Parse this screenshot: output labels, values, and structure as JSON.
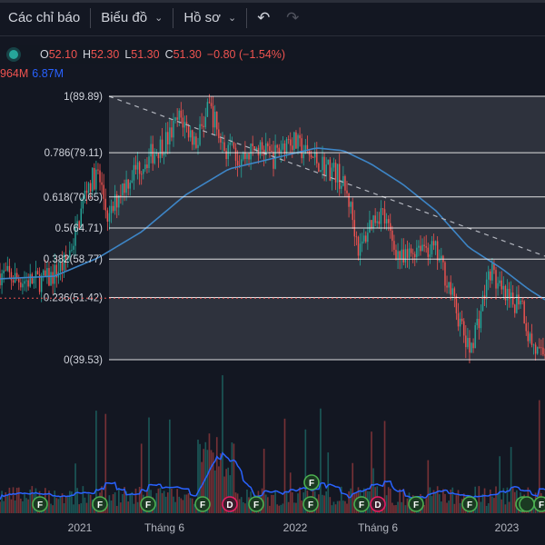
{
  "toolbar": {
    "indicators_label": "Các chỉ báo",
    "chart_label": "Biểu đồ",
    "profile_label": "Hồ sơ"
  },
  "legend": {
    "open_key": "O",
    "open": "52.10",
    "high_key": "H",
    "high": "52.30",
    "low_key": "L",
    "low": "51.30",
    "close_key": "C",
    "close": "51.30",
    "change": "−0.80 (−1.54%)"
  },
  "volume_legend": {
    "v1": "964M",
    "v2": "6.87M"
  },
  "colors": {
    "up": "#26a69a",
    "down": "#ef5350",
    "ma": "#3d85c6",
    "fib": "#ffffff",
    "event": "#4caf50",
    "dividend": "#e91e63"
  },
  "chart_data": {
    "type": "candlestick",
    "fib_levels": [
      {
        "label": "1(89.89)",
        "value": 89.89
      },
      {
        "label": "0.786(79.11)",
        "value": 79.11
      },
      {
        "label": "0.618(70.65)",
        "value": 70.65
      },
      {
        "label": "0.5(64.71)",
        "value": 64.71
      },
      {
        "label": "0.382(58.77)",
        "value": 58.77
      },
      {
        "label": "0.236(51.42)",
        "value": 51.42
      },
      {
        "label": "0(39.53)",
        "value": 39.53
      }
    ],
    "price_line": 51.3,
    "x_labels": [
      "2021",
      "Tháng 6",
      "2022",
      "Tháng 6",
      "2023"
    ],
    "events": [
      "F",
      "F",
      "F",
      "F",
      "F",
      "F",
      "D",
      "F",
      "F",
      "F",
      "F",
      "F",
      "D",
      "F",
      "F",
      "F",
      "F"
    ],
    "price_path": [
      [
        0,
        56
      ],
      [
        0.03,
        55
      ],
      [
        0.06,
        54.5
      ],
      [
        0.09,
        55
      ],
      [
        0.12,
        58
      ],
      [
        0.14,
        64
      ],
      [
        0.16,
        73
      ],
      [
        0.18,
        75
      ],
      [
        0.2,
        66
      ],
      [
        0.22,
        72
      ],
      [
        0.25,
        76
      ],
      [
        0.28,
        79
      ],
      [
        0.31,
        82
      ],
      [
        0.33,
        86
      ],
      [
        0.36,
        81
      ],
      [
        0.385,
        88
      ],
      [
        0.41,
        80
      ],
      [
        0.44,
        78
      ],
      [
        0.47,
        80
      ],
      [
        0.5,
        78
      ],
      [
        0.53,
        82
      ],
      [
        0.56,
        79
      ],
      [
        0.59,
        77
      ],
      [
        0.62,
        75
      ],
      [
        0.64,
        70
      ],
      [
        0.66,
        60
      ],
      [
        0.68,
        66
      ],
      [
        0.7,
        68
      ],
      [
        0.72,
        62
      ],
      [
        0.74,
        58
      ],
      [
        0.77,
        62
      ],
      [
        0.8,
        60
      ],
      [
        0.82,
        55
      ],
      [
        0.84,
        48
      ],
      [
        0.86,
        41
      ],
      [
        0.88,
        48
      ],
      [
        0.9,
        57
      ],
      [
        0.92,
        52
      ],
      [
        0.94,
        50
      ],
      [
        0.955,
        52
      ],
      [
        0.97,
        44
      ],
      [
        0.99,
        40
      ],
      [
        1,
        41
      ]
    ],
    "ma_path": [
      [
        0,
        55
      ],
      [
        0.1,
        55.5
      ],
      [
        0.18,
        59
      ],
      [
        0.26,
        64
      ],
      [
        0.34,
        71
      ],
      [
        0.42,
        76
      ],
      [
        0.5,
        78
      ],
      [
        0.58,
        80
      ],
      [
        0.63,
        79.5
      ],
      [
        0.68,
        77
      ],
      [
        0.74,
        73
      ],
      [
        0.8,
        68
      ],
      [
        0.86,
        61
      ],
      [
        0.92,
        57
      ],
      [
        0.97,
        53
      ],
      [
        1,
        51
      ]
    ]
  }
}
